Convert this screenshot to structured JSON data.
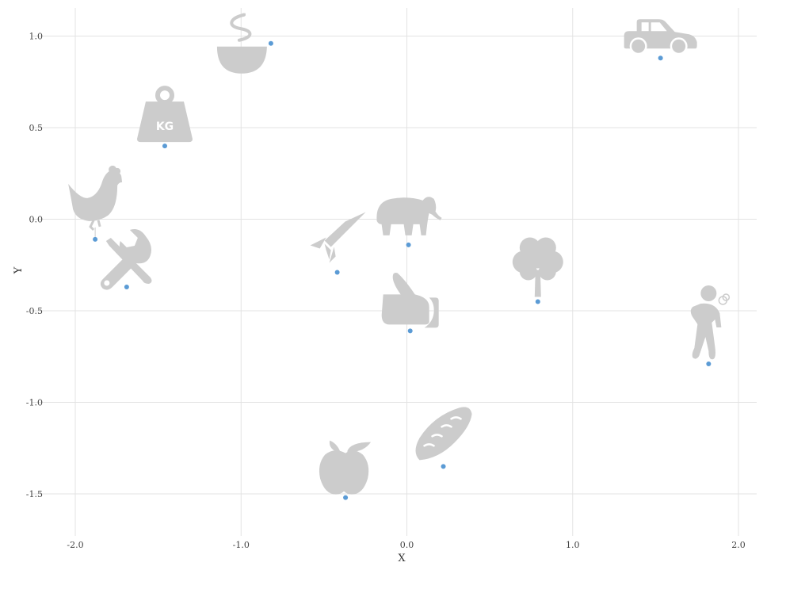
{
  "chart_data": {
    "type": "scatter",
    "title": "",
    "xlabel": "X",
    "ylabel": "Y",
    "xlim": [
      -2.1,
      2.1
    ],
    "ylim": [
      -1.72,
      1.15
    ],
    "x_ticks": [
      -2.0,
      -1.0,
      0.0,
      1.0,
      2.0
    ],
    "y_ticks": [
      1.0,
      0.5,
      0.0,
      -0.5,
      -1.0,
      -1.5
    ],
    "x_tick_labels": [
      "-2.0",
      "-1.0",
      "0.0",
      "1.0",
      "2.0"
    ],
    "y_tick_labels": [
      "1.0",
      "0.5",
      "0.0",
      "-0.5",
      "-1.0",
      "-1.5"
    ],
    "grid": true,
    "marker_color": "#5b9bd5",
    "icon_color": "#cccccc",
    "points": [
      {
        "x": -0.82,
        "y": 0.96,
        "icon": "soup-bowl-icon"
      },
      {
        "x": 1.53,
        "y": 0.88,
        "icon": "car-icon"
      },
      {
        "x": -1.46,
        "y": 0.4,
        "icon": "weight-kg-icon"
      },
      {
        "x": -1.88,
        "y": -0.11,
        "icon": "chicken-icon"
      },
      {
        "x": 0.01,
        "y": -0.14,
        "icon": "elephant-icon"
      },
      {
        "x": -0.42,
        "y": -0.29,
        "icon": "rocket-icon"
      },
      {
        "x": -1.69,
        "y": -0.37,
        "icon": "tools-icon"
      },
      {
        "x": 0.79,
        "y": -0.45,
        "icon": "tree-icon"
      },
      {
        "x": 0.02,
        "y": -0.61,
        "icon": "thumbs-up-icon"
      },
      {
        "x": 1.82,
        "y": -0.79,
        "icon": "person-coughing-icon"
      },
      {
        "x": 0.22,
        "y": -1.35,
        "icon": "bread-icon"
      },
      {
        "x": -0.37,
        "y": -1.52,
        "icon": "apple-icon"
      }
    ],
    "icon_text": {
      "weight_label": "KG"
    }
  }
}
